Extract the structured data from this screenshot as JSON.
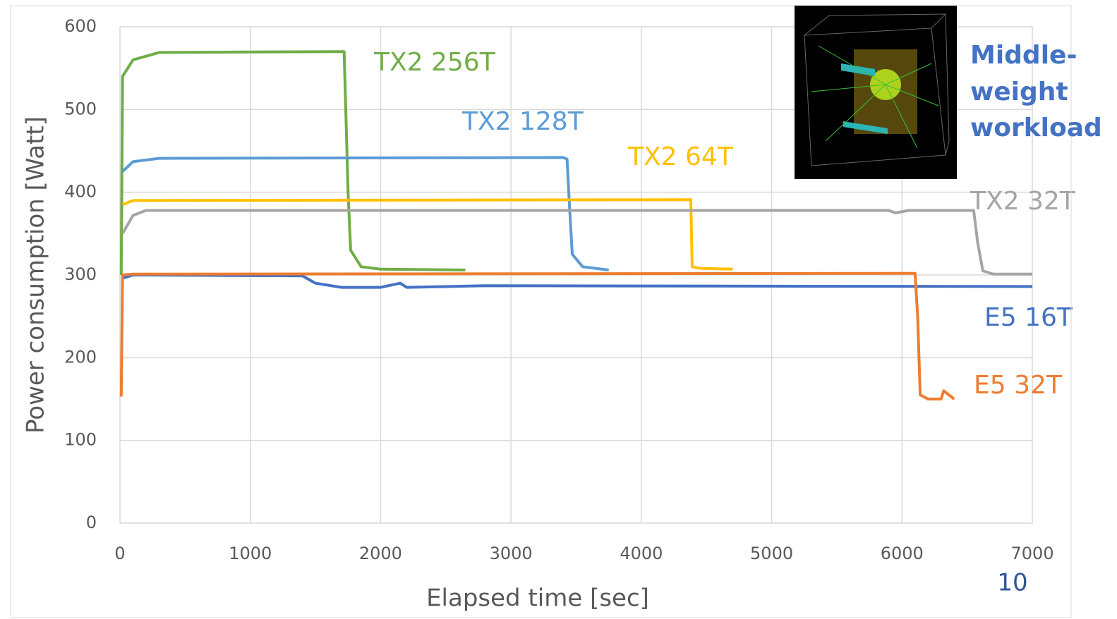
{
  "chart_data": {
    "type": "line",
    "x_label": "Elapsed time [sec]",
    "y_label": "Power consumption [Watt]",
    "xlim": [
      0,
      7000
    ],
    "xticks": [
      0,
      1000,
      2000,
      3000,
      4000,
      5000,
      6000,
      7000
    ],
    "ylim": [
      0,
      600
    ],
    "yticks": [
      0,
      100,
      200,
      300,
      400,
      500,
      600
    ],
    "grid": true,
    "series": [
      {
        "name": "TX2 256T",
        "color": "#70ad47",
        "x": [
          10,
          20,
          100,
          300,
          1700,
          1720,
          1750,
          1770,
          1850,
          2000,
          2650
        ],
        "values": [
          300,
          540,
          560,
          569,
          570,
          570,
          400,
          330,
          310,
          307,
          306
        ]
      },
      {
        "name": "TX2 128T",
        "color": "#5b9bd5",
        "x": [
          20,
          100,
          300,
          3400,
          3430,
          3450,
          3470,
          3550,
          3750
        ],
        "values": [
          425,
          437,
          441,
          442,
          440,
          380,
          325,
          310,
          306
        ]
      },
      {
        "name": "TX2 64T",
        "color": "#ffc000",
        "x": [
          20,
          100,
          4370,
          4380,
          4390,
          4450,
          4700
        ],
        "values": [
          385,
          390,
          391,
          391,
          310,
          308,
          307
        ]
      },
      {
        "name": "TX2 32T",
        "color": "#a5a5a5",
        "x": [
          20,
          100,
          200,
          5900,
          5950,
          6050,
          6550,
          6580,
          6620,
          6700,
          7000
        ],
        "values": [
          350,
          372,
          378,
          378,
          375,
          378,
          378,
          340,
          305,
          301,
          301
        ]
      },
      {
        "name": "E5 16T",
        "color": "#4472c4",
        "x": [
          20,
          100,
          1400,
          1500,
          1700,
          2000,
          2150,
          2200,
          2800,
          7000
        ],
        "values": [
          296,
          300,
          299,
          290,
          285,
          285,
          290,
          285,
          287,
          286
        ]
      },
      {
        "name": "E5 32T",
        "color": "#ed7d31",
        "x": [
          10,
          20,
          100,
          6100,
          6120,
          6140,
          6200,
          6300,
          6320,
          6400
        ],
        "values": [
          153,
          300,
          301,
          302,
          250,
          155,
          150,
          150,
          160,
          150
        ]
      }
    ]
  },
  "annotation": {
    "lines": [
      "Middle-",
      "weight",
      "workload"
    ]
  },
  "page_number": "10"
}
